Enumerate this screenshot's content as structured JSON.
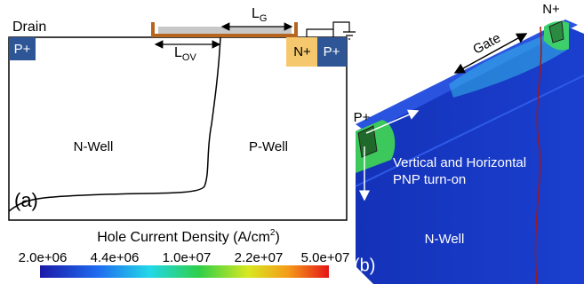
{
  "panel_a": {
    "drain": "Drain",
    "p_plus_left": "P+",
    "gate_length": {
      "main": "L",
      "sub": "G"
    },
    "overlap_length": {
      "main": "L",
      "sub": "OV"
    },
    "n_plus": "N+",
    "p_plus_right": "P+",
    "n_well": "N-Well",
    "p_well": "P-Well",
    "tag": "(a)"
  },
  "colorbar": {
    "title": {
      "main": "Hole Current Density (A/cm",
      "sup": "2",
      "end": ")"
    },
    "ticks": [
      "2.0e+06",
      "4.4e+06",
      "1.0e+07",
      "2.2e+07",
      "5.0e+07"
    ]
  },
  "panel_b": {
    "n_plus": "N+",
    "gate": "Gate",
    "p_plus": "P+",
    "annotation": [
      "Vertical and Horizontal",
      "PNP turn-on"
    ],
    "n_well": "N-Well",
    "tag": "(b)"
  }
}
